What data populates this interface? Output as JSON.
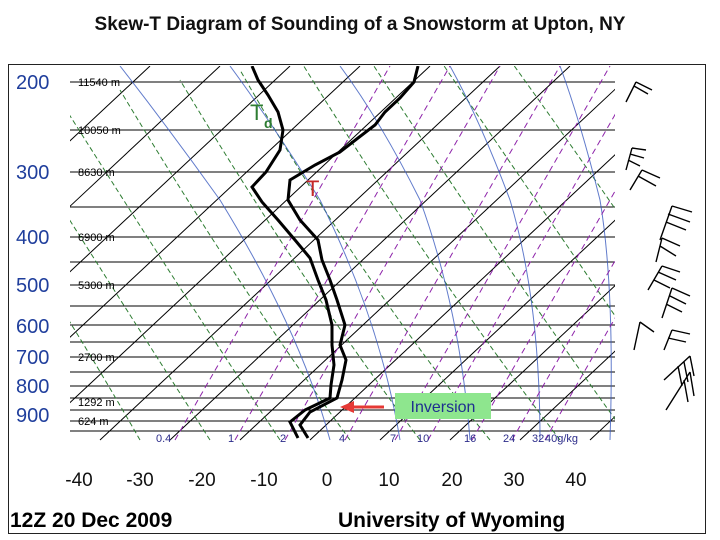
{
  "title": "Skew-T Diagram of Sounding of a Snowstorm at Upton, NY",
  "pressure_labels": [
    "200",
    "300",
    "400",
    "500",
    "600",
    "700",
    "800",
    "900"
  ],
  "height_labels": [
    "11540 m",
    "10050 m",
    "8630 m",
    "6900 m",
    "5300 m",
    "2700 m",
    "1292 m",
    "624 m"
  ],
  "mixing_ratio_labels": [
    "0.4",
    "1",
    "2",
    "4",
    "7",
    "10",
    "16",
    "24",
    "32",
    "40g/kg"
  ],
  "temperature_labels": [
    "-40",
    "-30",
    "-20",
    "-10",
    "0",
    "10",
    "20",
    "30",
    "40"
  ],
  "annotations": {
    "dewpoint": "T",
    "dewpoint_sub": "d",
    "temperature": "T",
    "inversion": "Inversion"
  },
  "footer": {
    "time": "12Z 20 Dec 2009",
    "source": "University of Wyoming"
  },
  "colors": {
    "frame": "#222222",
    "isotherm": "#000000",
    "dry_adiabat": "#2e7d32",
    "moist_adiabat": "#1565c0",
    "mixing_ratio": "#8e24aa",
    "sounding": "#000000",
    "td_label": "#2e7d32",
    "t_label": "#c62828",
    "inversion_arrow": "#e53935",
    "inversion_box": "#8ee68e"
  }
}
